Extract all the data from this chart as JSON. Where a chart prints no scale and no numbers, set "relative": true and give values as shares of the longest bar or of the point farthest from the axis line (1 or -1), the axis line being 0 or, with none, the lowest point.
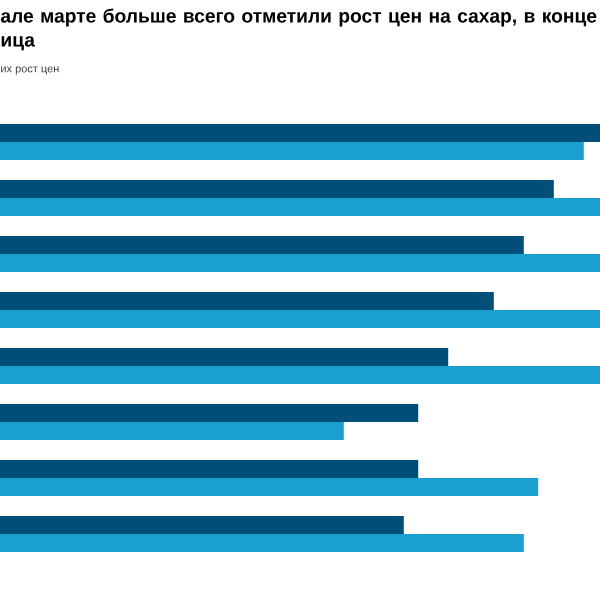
{
  "chart_data": {
    "type": "bar",
    "orientation": "horizontal",
    "relative": true,
    "title": "але марте больше всего отметили рост цен на сахар, в конце ица",
    "subtitle": "их рост цен",
    "categories": [
      null,
      null,
      null,
      null,
      null,
      null,
      null,
      null
    ],
    "series": [
      {
        "color": "#004f78",
        "values": [
          1,
          0.923,
          0.873,
          0.823,
          0.747,
          0.697,
          0.697,
          0.673
        ]
      },
      {
        "color": "#1ba0cf",
        "values": [
          0.973,
          1,
          1,
          1,
          1,
          0.573,
          0.897,
          0.873
        ]
      }
    ]
  }
}
